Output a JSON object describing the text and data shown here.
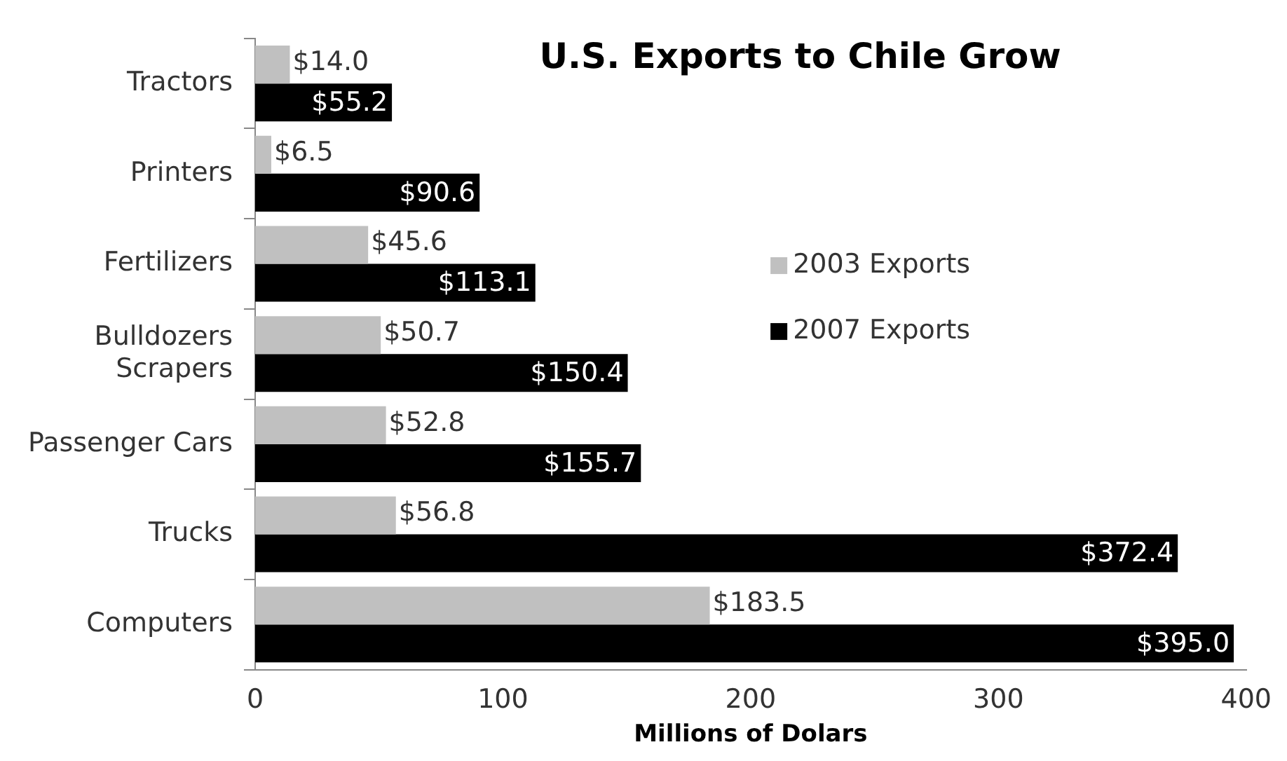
{
  "chart_data": {
    "type": "bar",
    "orientation": "horizontal",
    "title": "U.S. Exports to Chile Grow",
    "xlabel": "Millions of Dolars",
    "categories": [
      "Tractors",
      "Printers",
      "Fertilizers",
      "Bulldozers\nScrapers",
      "Passenger Cars",
      "Trucks",
      "Computers"
    ],
    "series": [
      {
        "name": "2003 Exports",
        "color": "#c0c0c0",
        "values": [
          14.0,
          6.5,
          45.6,
          50.7,
          52.8,
          56.8,
          183.5
        ],
        "value_labels": [
          "$14.0",
          "$6.5",
          "$45.6",
          "$50.7",
          "$52.8",
          "$56.8",
          "$183.5"
        ]
      },
      {
        "name": "2007 Exports",
        "color": "#000000",
        "values": [
          55.2,
          90.6,
          113.1,
          150.4,
          155.7,
          372.4,
          395.0
        ],
        "value_labels": [
          "$55.2",
          "$90.6",
          "$113.1",
          "$150.4",
          "$155.7",
          "$372.4",
          "$395.0"
        ]
      }
    ],
    "xlim": [
      0,
      400
    ],
    "xticks": [
      0,
      100,
      200,
      300,
      400
    ],
    "grid": false,
    "legend": "right"
  }
}
